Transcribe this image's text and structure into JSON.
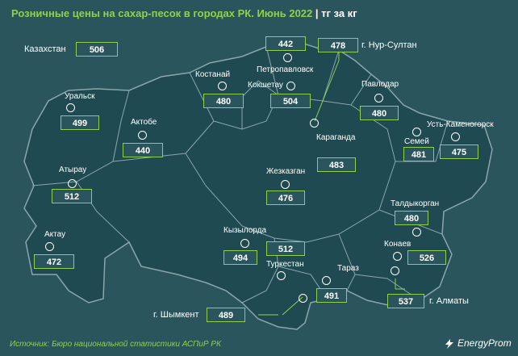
{
  "title": {
    "text": "Розничные цены на сахар-песок в городах РК. Июнь 2022",
    "unit": "тг за кг"
  },
  "national": {
    "label": "Казахстан",
    "value": "506"
  },
  "cities": {
    "uralsk": {
      "label": "Уральск",
      "value": "499"
    },
    "aktobe": {
      "label": "Актобе",
      "value": "440"
    },
    "atyrau": {
      "label": "Атырау",
      "value": "512"
    },
    "aktau": {
      "label": "Актау",
      "value": "472"
    },
    "kostanay": {
      "label": "Костанай",
      "value": "480"
    },
    "petropavlovsk": {
      "label": "Петропавловск",
      "value": "442"
    },
    "kokshetau": {
      "label": "Кокшетау",
      "value": "504"
    },
    "nur_sultan": {
      "label": "г. Нур-Султан",
      "value": "478"
    },
    "pavlodar": {
      "label": "Павлодар",
      "value": "480"
    },
    "semey": {
      "label": "Семей",
      "value": "481"
    },
    "ust_kamenogorsk": {
      "label": "Усть-Каменогорск",
      "value": "475"
    },
    "karaganda": {
      "label": "Караганда",
      "value": "483"
    },
    "zhezkazgan": {
      "label": "Жезказган",
      "value": "476"
    },
    "kyzylorda": {
      "label": "Кызылорда",
      "value": "494"
    },
    "turkestan": {
      "label": "Туркестан",
      "value": "512"
    },
    "shymkent": {
      "label": "г. Шымкент",
      "value": "489"
    },
    "taraz": {
      "label": "Тараз",
      "value": "491"
    },
    "taldykorgan": {
      "label": "Талдыкорган",
      "value": "480"
    },
    "konaev": {
      "label": "Конаев",
      "value": "526"
    },
    "almaty": {
      "label": "г. Алматы",
      "value": "537"
    }
  },
  "source": "Источник: Бюро национальной статистики АСПиР РК",
  "brand": "EnergyProm",
  "colors": {
    "background": "#2a555d",
    "map_fill": "#1f4a52",
    "borders": "#8aa6ab",
    "accent": "#8fd14f",
    "text": "#ffffff"
  }
}
